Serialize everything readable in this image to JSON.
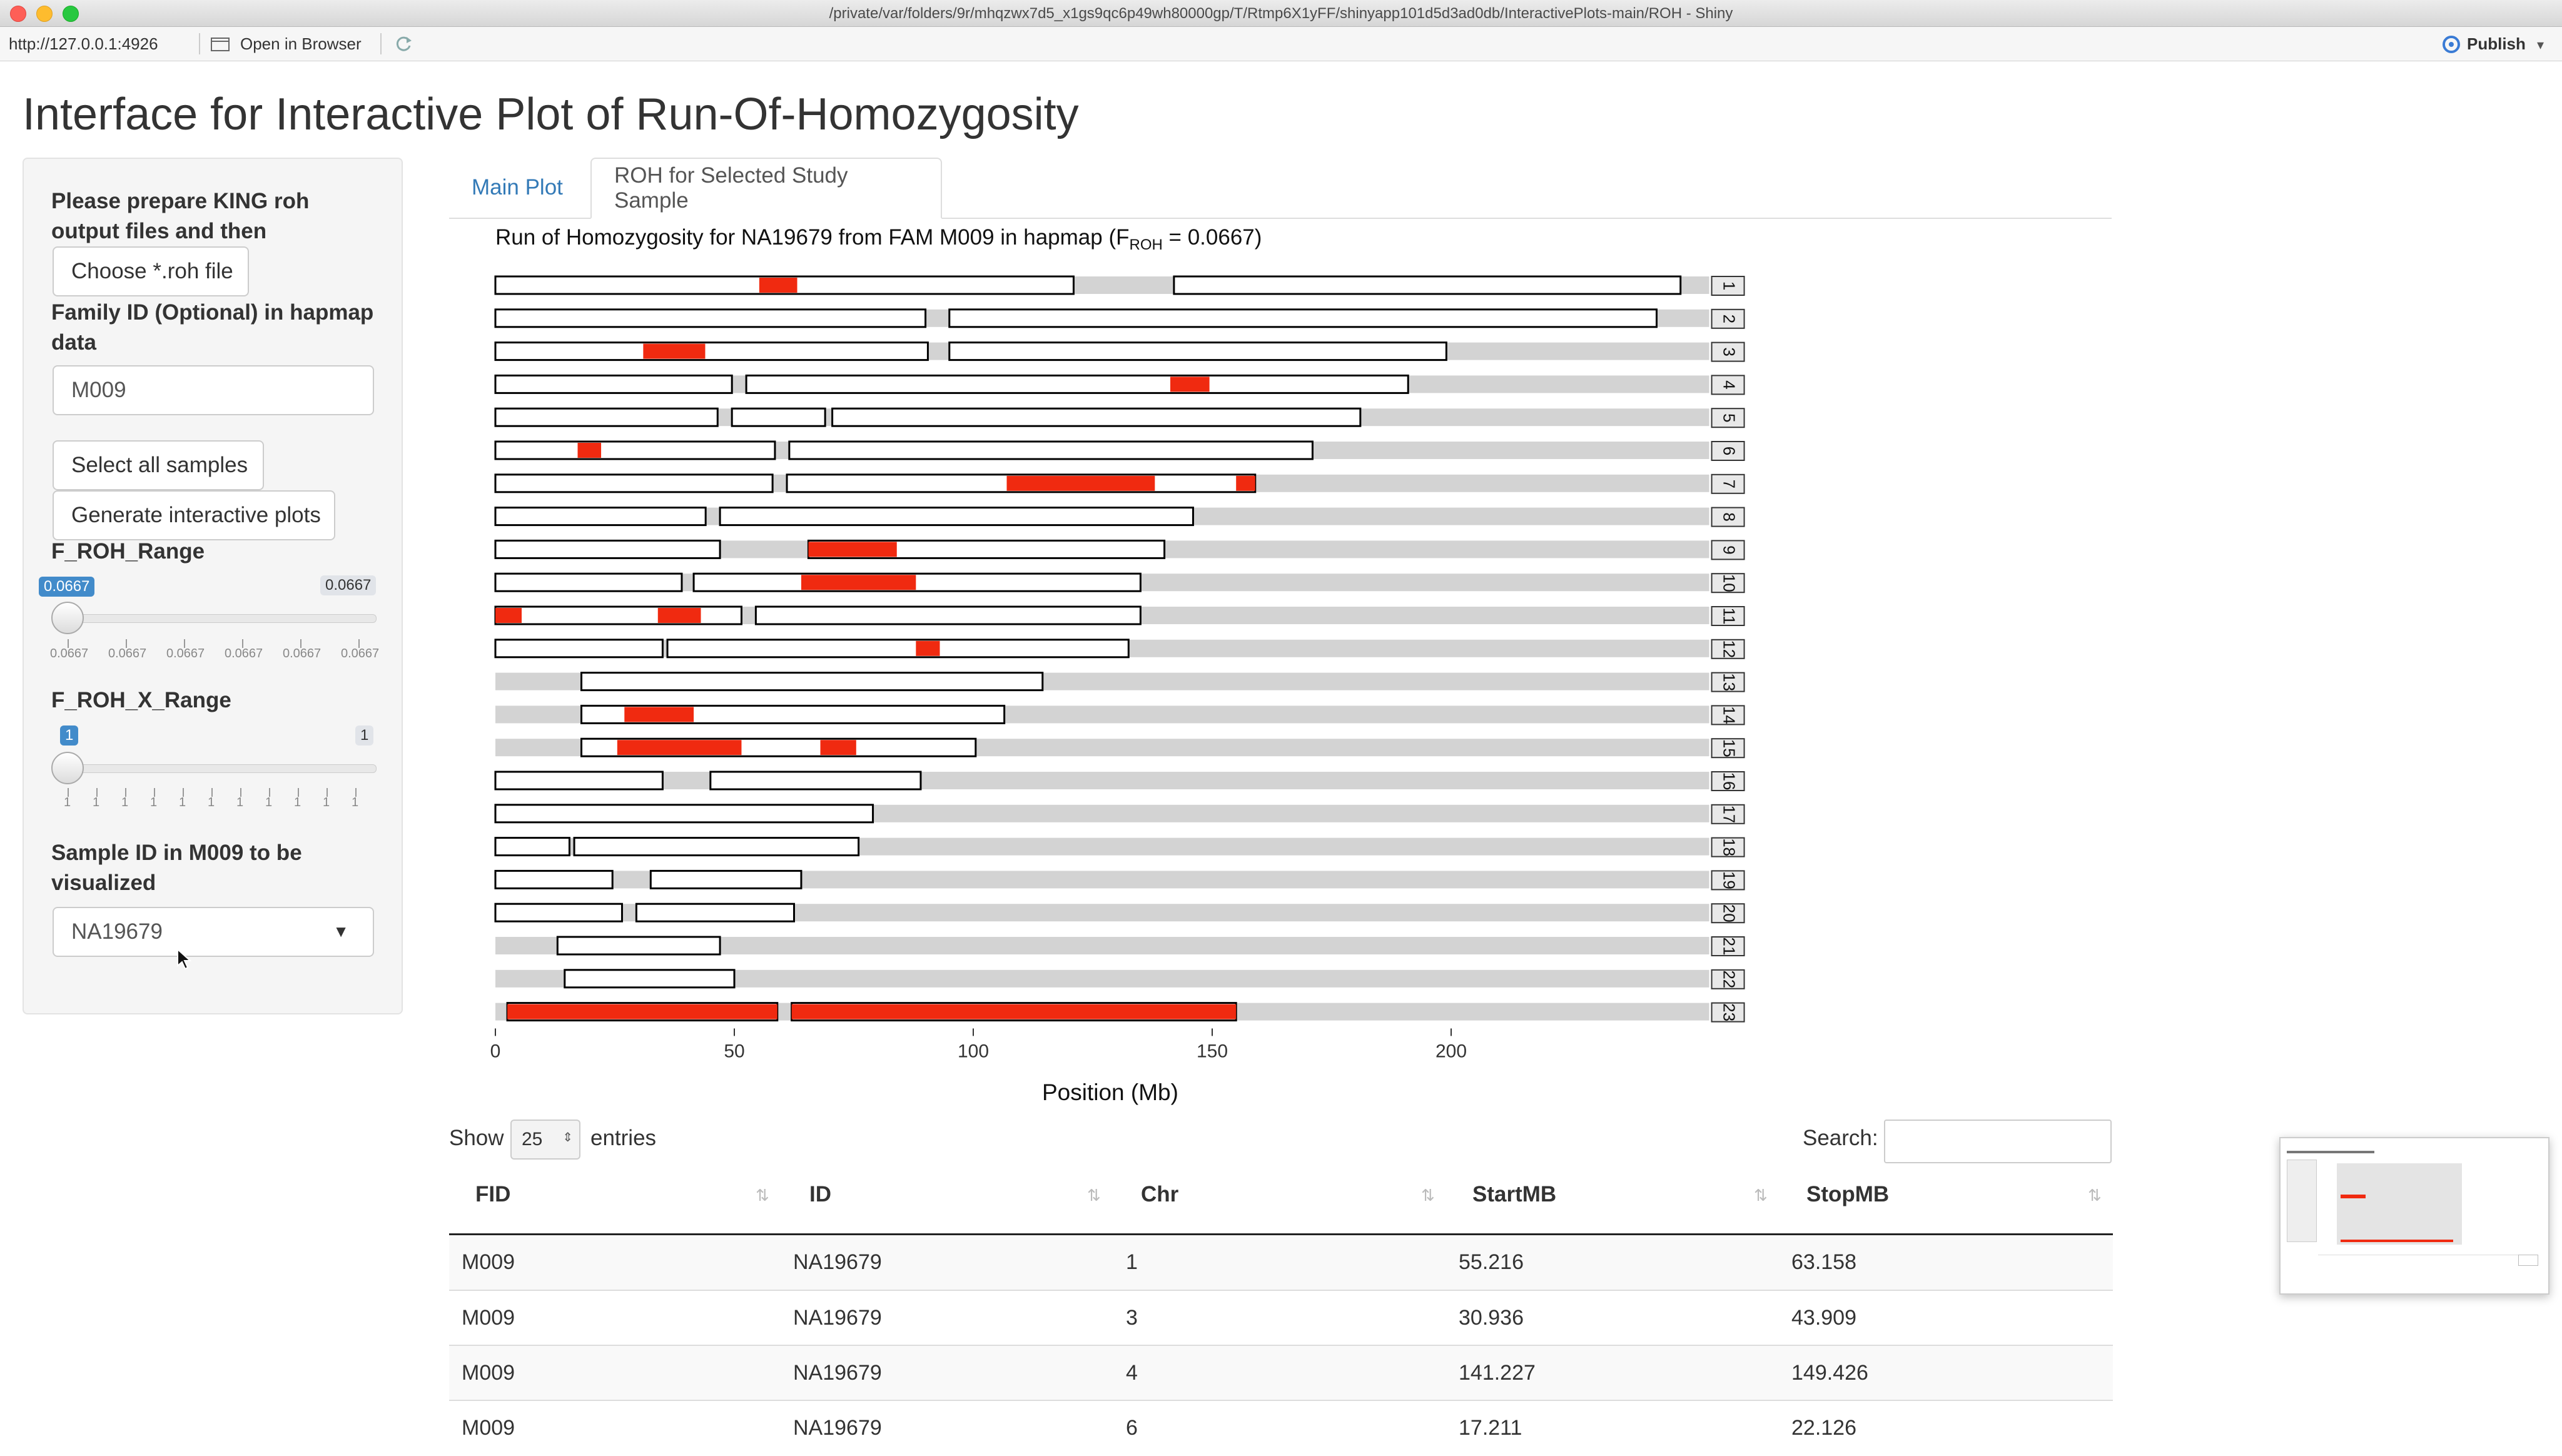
{
  "window": {
    "title": "/private/var/folders/9r/mhqzwx7d5_x1gs9qc6p49wh80000gp/T/Rtmp6X1yFF/shinyapp101d5d3ad0db/InteractivePlots-main/ROH - Shiny"
  },
  "toolbar": {
    "url": "http://127.0.0.1:4926",
    "open_in_browser": "Open in Browser",
    "publish": "Publish"
  },
  "page_title": "Interface for Interactive Plot of Run-Of-Homozygosity",
  "sidebar": {
    "prepare_label": "Please prepare KING roh output files and then",
    "choose_file_button": "Choose *.roh file",
    "family_id_label": "Family ID (Optional) in hapmap data",
    "family_id_value": "M009",
    "select_all_button": "Select all samples",
    "generate_button": "Generate interactive plots",
    "froh_range": {
      "label": "F_ROH_Range",
      "min_badge": "0.0667",
      "max_badge": "0.0667",
      "ticks": [
        "0.0667",
        "0.0667",
        "0.0667",
        "0.0667",
        "0.0667",
        "0.0667"
      ]
    },
    "froh_x_range": {
      "label": "F_ROH_X_Range",
      "min_badge": "1",
      "max_badge": "1",
      "ticks": [
        "1",
        "1",
        "1",
        "1",
        "1",
        "1",
        "1",
        "1",
        "1",
        "1",
        "1"
      ]
    },
    "sample_label": "Sample ID in M009 to be visualized",
    "sample_value": "NA19679"
  },
  "tabs": [
    {
      "label": "Main Plot",
      "active": false
    },
    {
      "label": "ROH for Selected Study Sample",
      "active": true
    }
  ],
  "plot": {
    "title_prefix": "Run of Homozygosity for NA19679 from FAM M009 in hapmap (F",
    "title_sub": "ROH",
    "title_suffix": " = 0.0667)",
    "xlabel": "Position (Mb)"
  },
  "chart_data": {
    "type": "bar",
    "title": "Run of Homozygosity for NA19679 from FAM M009 in hapmap (F_ROH = 0.0667)",
    "xlabel": "Position (Mb)",
    "xticks": [
      0,
      50,
      100,
      150,
      200
    ],
    "xlim": [
      0,
      254
    ],
    "roh_color": "#f02a10",
    "segment_color": "#ffffff",
    "chromosome_color": "#d3d3d3",
    "chromosomes": [
      {
        "chr": "1",
        "length": 248,
        "segments": [
          [
            0,
            121
          ],
          [
            142,
            248
          ]
        ],
        "roh": [
          [
            55.216,
            63.158
          ]
        ]
      },
      {
        "chr": "2",
        "length": 242,
        "segments": [
          [
            0,
            90
          ],
          [
            95,
            243
          ]
        ],
        "roh": []
      },
      {
        "chr": "3",
        "length": 198,
        "segments": [
          [
            0,
            90.5
          ],
          [
            95,
            199
          ]
        ],
        "roh": [
          [
            30.936,
            43.909
          ]
        ]
      },
      {
        "chr": "4",
        "length": 190,
        "segments": [
          [
            0,
            49.5
          ],
          [
            52.5,
            191
          ]
        ],
        "roh": [
          [
            141.227,
            149.426
          ]
        ]
      },
      {
        "chr": "5",
        "length": 181,
        "segments": [
          [
            0,
            46.5
          ],
          [
            49.5,
            69
          ],
          [
            70.5,
            181
          ]
        ],
        "roh": []
      },
      {
        "chr": "6",
        "length": 171,
        "segments": [
          [
            0,
            58.5
          ],
          [
            61.5,
            171
          ]
        ],
        "roh": [
          [
            17.211,
            22.126
          ]
        ]
      },
      {
        "chr": "7",
        "length": 159,
        "segments": [
          [
            0,
            58
          ],
          [
            61,
            159
          ]
        ],
        "roh": [
          [
            107,
            138
          ],
          [
            155,
            159
          ]
        ]
      },
      {
        "chr": "8",
        "length": 145,
        "segments": [
          [
            0,
            44
          ],
          [
            47,
            146
          ]
        ],
        "roh": []
      },
      {
        "chr": "9",
        "length": 138,
        "segments": [
          [
            0,
            47
          ],
          [
            65.5,
            140
          ]
        ],
        "roh": [
          [
            65.5,
            84
          ]
        ]
      },
      {
        "chr": "10",
        "length": 134,
        "segments": [
          [
            0,
            39
          ],
          [
            41.5,
            135
          ]
        ],
        "roh": [
          [
            64,
            88
          ]
        ]
      },
      {
        "chr": "11",
        "length": 135,
        "segments": [
          [
            0,
            51.5
          ],
          [
            54.5,
            135
          ]
        ],
        "roh": [
          [
            0,
            5.5
          ],
          [
            34,
            43
          ]
        ]
      },
      {
        "chr": "12",
        "length": 133,
        "segments": [
          [
            0,
            35
          ],
          [
            36,
            132.5
          ]
        ],
        "roh": [
          [
            88,
            93
          ]
        ]
      },
      {
        "chr": "13",
        "length": 114,
        "segments": [
          [
            18,
            114.5
          ]
        ],
        "roh": []
      },
      {
        "chr": "14",
        "length": 107,
        "segments": [
          [
            18,
            106.5
          ]
        ],
        "roh": [
          [
            27,
            41.5
          ]
        ]
      },
      {
        "chr": "15",
        "length": 102,
        "segments": [
          [
            18,
            100.5
          ]
        ],
        "roh": [
          [
            25.5,
            51.5
          ],
          [
            68,
            75.5
          ]
        ]
      },
      {
        "chr": "16",
        "length": 90,
        "segments": [
          [
            0,
            35
          ],
          [
            45,
            89
          ]
        ],
        "roh": []
      },
      {
        "chr": "17",
        "length": 83,
        "segments": [
          [
            0,
            79
          ]
        ],
        "roh": []
      },
      {
        "chr": "18",
        "length": 80,
        "segments": [
          [
            0,
            15.5
          ],
          [
            16.5,
            76
          ]
        ],
        "roh": []
      },
      {
        "chr": "19",
        "length": 59,
        "segments": [
          [
            0,
            24.5
          ],
          [
            32.5,
            64
          ]
        ],
        "roh": []
      },
      {
        "chr": "20",
        "length": 64,
        "segments": [
          [
            0,
            26.5
          ],
          [
            29.5,
            62.5
          ]
        ],
        "roh": []
      },
      {
        "chr": "21",
        "length": 47,
        "segments": [
          [
            13,
            47
          ]
        ],
        "roh": []
      },
      {
        "chr": "22",
        "length": 51,
        "segments": [
          [
            14.5,
            50
          ]
        ],
        "roh": []
      },
      {
        "chr": "23",
        "length": 155,
        "segments": [
          [
            2.5,
            59
          ],
          [
            62,
            155
          ]
        ],
        "roh": [
          [
            2.5,
            59
          ],
          [
            62,
            155
          ]
        ]
      }
    ]
  },
  "table": {
    "show_label": "Show",
    "entries_value": "25",
    "entries_label": "entries",
    "search_label": "Search:",
    "columns": [
      "FID",
      "ID",
      "Chr",
      "StartMB",
      "StopMB"
    ],
    "rows": [
      [
        "M009",
        "NA19679",
        "1",
        "55.216",
        "63.158"
      ],
      [
        "M009",
        "NA19679",
        "3",
        "30.936",
        "43.909"
      ],
      [
        "M009",
        "NA19679",
        "4",
        "141.227",
        "149.426"
      ],
      [
        "M009",
        "NA19679",
        "6",
        "17.211",
        "22.126"
      ]
    ]
  }
}
